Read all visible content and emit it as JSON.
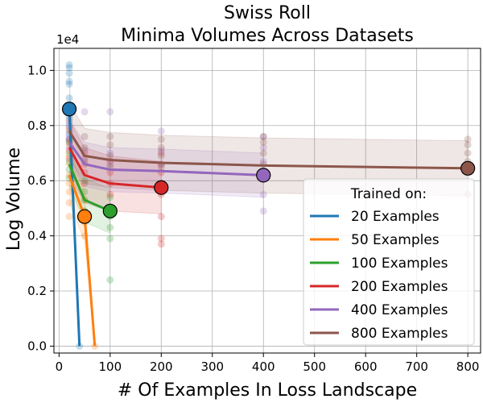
{
  "chart_data": {
    "type": "line",
    "title": [
      "Swiss Roll",
      "Minima Volumes Across Datasets"
    ],
    "xlabel": "# Of Examples In Loss Landscape",
    "ylabel": "Log Volume",
    "y_scale_label": "1e4",
    "xlim": [
      -10,
      825
    ],
    "ylim": [
      -250,
      10800
    ],
    "x_ticks": [
      0,
      100,
      200,
      300,
      400,
      500,
      600,
      700,
      800
    ],
    "y_ticks": [
      0,
      2000,
      4000,
      6000,
      8000,
      10000
    ],
    "y_tick_labels": [
      "0.0",
      "0.2",
      "0.4",
      "0.6",
      "0.8",
      "1.0"
    ],
    "grid": true,
    "legend": {
      "title": "Trained on:",
      "position": "lower-right"
    },
    "series": [
      {
        "name": "20 Examples",
        "color": "#1f77b4",
        "x": [
          20,
          40
        ],
        "mean": [
          8600,
          0
        ],
        "lower": [
          7300,
          0
        ],
        "upper": [
          9900,
          0
        ],
        "highlight": {
          "x": 20,
          "y": 8600
        },
        "scatter": [
          [
            20,
            10200
          ],
          [
            20,
            10100
          ],
          [
            20,
            9900
          ],
          [
            20,
            9600
          ],
          [
            20,
            9500
          ],
          [
            20,
            9000
          ],
          [
            20,
            8700
          ],
          [
            20,
            8500
          ],
          [
            20,
            8300
          ],
          [
            20,
            8000
          ],
          [
            20,
            7700
          ],
          [
            20,
            7500
          ],
          [
            40,
            0
          ]
        ]
      },
      {
        "name": "50 Examples",
        "color": "#ff7f0e",
        "x": [
          20,
          50,
          70
        ],
        "mean": [
          6200,
          4700,
          0
        ],
        "lower": [
          5200,
          3800,
          0
        ],
        "upper": [
          7200,
          5600,
          0
        ],
        "highlight": {
          "x": 50,
          "y": 4700
        },
        "scatter": [
          [
            20,
            7300
          ],
          [
            20,
            6900
          ],
          [
            20,
            6600
          ],
          [
            20,
            6200
          ],
          [
            20,
            5900
          ],
          [
            20,
            5600
          ],
          [
            20,
            5200
          ],
          [
            20,
            4700
          ],
          [
            50,
            5300
          ],
          [
            50,
            4900
          ],
          [
            50,
            4500
          ],
          [
            50,
            4000
          ],
          [
            70,
            0
          ]
        ]
      },
      {
        "name": "100 Examples",
        "color": "#2ca02c",
        "x": [
          20,
          50,
          100
        ],
        "mean": [
          6600,
          5300,
          4900
        ],
        "lower": [
          5800,
          4500,
          4100
        ],
        "upper": [
          7400,
          6100,
          5700
        ],
        "highlight": {
          "x": 100,
          "y": 4900
        },
        "scatter": [
          [
            20,
            7400
          ],
          [
            20,
            7000
          ],
          [
            20,
            6700
          ],
          [
            20,
            6400
          ],
          [
            20,
            6100
          ],
          [
            50,
            6000
          ],
          [
            50,
            5600
          ],
          [
            50,
            5300
          ],
          [
            50,
            4900
          ],
          [
            50,
            4600
          ],
          [
            100,
            5400
          ],
          [
            100,
            5000
          ],
          [
            100,
            4700
          ],
          [
            100,
            4300
          ],
          [
            100,
            3900
          ],
          [
            100,
            2400
          ]
        ]
      },
      {
        "name": "200 Examples",
        "color": "#d62728",
        "x": [
          20,
          50,
          100,
          200
        ],
        "mean": [
          7200,
          6200,
          5900,
          5750
        ],
        "lower": [
          6200,
          5200,
          4900,
          4800
        ],
        "upper": [
          8200,
          7200,
          6900,
          6700
        ],
        "highlight": {
          "x": 200,
          "y": 5750
        },
        "scatter": [
          [
            20,
            7900
          ],
          [
            20,
            7500
          ],
          [
            20,
            7100
          ],
          [
            20,
            6800
          ],
          [
            50,
            7000
          ],
          [
            50,
            6600
          ],
          [
            50,
            6300
          ],
          [
            50,
            5900
          ],
          [
            100,
            6700
          ],
          [
            100,
            6300
          ],
          [
            100,
            5900
          ],
          [
            100,
            5500
          ],
          [
            200,
            7000
          ],
          [
            200,
            6600
          ],
          [
            200,
            6300
          ],
          [
            200,
            5900
          ],
          [
            200,
            5500
          ],
          [
            200,
            4700
          ],
          [
            200,
            3900
          ],
          [
            200,
            3700
          ]
        ]
      },
      {
        "name": "400 Examples",
        "color": "#9467bd",
        "x": [
          20,
          50,
          100,
          200,
          400
        ],
        "mean": [
          7400,
          6600,
          6400,
          6350,
          6200
        ],
        "lower": [
          6600,
          5800,
          5600,
          5550,
          5400
        ],
        "upper": [
          8200,
          7400,
          7200,
          7150,
          7000
        ],
        "highlight": {
          "x": 400,
          "y": 6200
        },
        "scatter": [
          [
            20,
            8100
          ],
          [
            20,
            7600
          ],
          [
            20,
            7200
          ],
          [
            50,
            8500
          ],
          [
            50,
            7100
          ],
          [
            50,
            6700
          ],
          [
            100,
            8500
          ],
          [
            100,
            7000
          ],
          [
            100,
            6600
          ],
          [
            200,
            7800
          ],
          [
            200,
            7100
          ],
          [
            200,
            6600
          ],
          [
            400,
            7600
          ],
          [
            400,
            7200
          ],
          [
            400,
            6700
          ],
          [
            400,
            6200
          ],
          [
            400,
            5500
          ],
          [
            400,
            4900
          ]
        ]
      },
      {
        "name": "800 Examples",
        "color": "#8c564b",
        "x": [
          20,
          50,
          100,
          200,
          400,
          800
        ],
        "mean": [
          7800,
          6900,
          6750,
          6650,
          6550,
          6450
        ],
        "lower": [
          6800,
          5900,
          5750,
          5650,
          5550,
          5450
        ],
        "upper": [
          8800,
          7900,
          7750,
          7650,
          7550,
          7450
        ],
        "highlight": {
          "x": 800,
          "y": 6450
        },
        "scatter": [
          [
            20,
            8200
          ],
          [
            20,
            7800
          ],
          [
            20,
            7400
          ],
          [
            50,
            7600
          ],
          [
            50,
            7200
          ],
          [
            50,
            6800
          ],
          [
            100,
            7600
          ],
          [
            100,
            7300
          ],
          [
            100,
            6900
          ],
          [
            100,
            6500
          ],
          [
            200,
            7500
          ],
          [
            200,
            7200
          ],
          [
            200,
            6900
          ],
          [
            200,
            6500
          ],
          [
            400,
            7600
          ],
          [
            400,
            7400
          ],
          [
            400,
            7000
          ],
          [
            400,
            6600
          ],
          [
            800,
            7500
          ],
          [
            800,
            7300
          ],
          [
            800,
            7000
          ],
          [
            800,
            6700
          ],
          [
            800,
            6400
          ],
          [
            800,
            5500
          ]
        ]
      }
    ]
  }
}
